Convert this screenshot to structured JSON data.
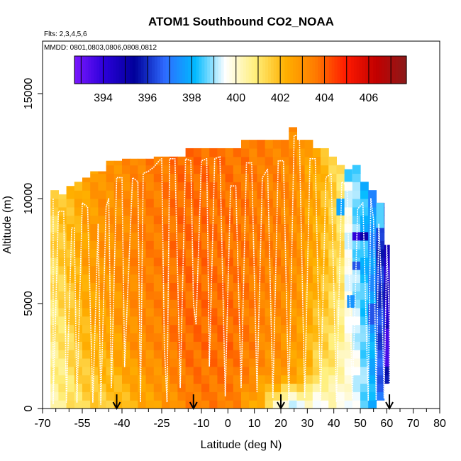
{
  "chart_data": {
    "type": "heatmap",
    "title": "ATOM1 Southbound CO2_NOAA",
    "flights_text": "Flts: 2,3,4,5,6",
    "dates_text": "MMDD: 0801,0803,0806,0808,0812",
    "xlabel": "Latitude (deg N)",
    "ylabel": "Altitude (m)",
    "xlim": [
      -70,
      80
    ],
    "ylim": [
      0,
      17500
    ],
    "x_ticks": [
      -70,
      -55,
      -40,
      -25,
      -10,
      0,
      10,
      20,
      30,
      40,
      50,
      60,
      70,
      80
    ],
    "x_minor_ticks": [
      -65,
      -60,
      -50,
      -45,
      -35,
      -30,
      -20,
      -15,
      -5,
      5,
      15,
      25,
      35,
      45,
      55,
      65,
      75
    ],
    "y_ticks": [
      0,
      5000,
      10000,
      15000
    ],
    "colorbar": {
      "min": 392.7,
      "max": 407.7,
      "ticks": [
        394,
        396,
        398,
        400,
        402,
        404,
        406
      ],
      "stops": [
        "#7b17ff",
        "#2a00d8",
        "#00009a",
        "#2e6bff",
        "#00baff",
        "#ffffff",
        "#ffef7a",
        "#ffb000",
        "#ff7a00",
        "#ff1a00",
        "#c20000",
        "#8c1a1a"
      ]
    },
    "arrow_latitudes": [
      -42,
      -13,
      20,
      61
    ],
    "columns": [
      {
        "lat0": -67,
        "lat1": -64,
        "top": 10400,
        "levels": [
          [
            0,
            400.5
          ],
          [
            4000,
            401.0
          ],
          [
            8000,
            401.5
          ]
        ]
      },
      {
        "lat0": -64,
        "lat1": -61,
        "top": 10200,
        "levels": [
          [
            0,
            400.7
          ],
          [
            4000,
            401.2
          ],
          [
            8000,
            401.8
          ]
        ]
      },
      {
        "lat0": -61,
        "lat1": -58,
        "top": 10600,
        "levels": [
          [
            0,
            401.0
          ],
          [
            3000,
            401.4
          ],
          [
            7000,
            402.0
          ]
        ]
      },
      {
        "lat0": -58,
        "lat1": -55,
        "top": 10800,
        "levels": [
          [
            0,
            401.2
          ],
          [
            3000,
            401.8
          ],
          [
            7000,
            402.3
          ]
        ]
      },
      {
        "lat0": -55,
        "lat1": -52,
        "top": 11000,
        "levels": [
          [
            0,
            401.4
          ],
          [
            3000,
            402.0
          ],
          [
            7000,
            402.6
          ]
        ]
      },
      {
        "lat0": -52,
        "lat1": -49,
        "top": 11300,
        "levels": [
          [
            0,
            401.5
          ],
          [
            3000,
            402.3
          ],
          [
            7000,
            402.8
          ]
        ]
      },
      {
        "lat0": -49,
        "lat1": -46,
        "top": 11300,
        "levels": [
          [
            0,
            401.6
          ],
          [
            3000,
            402.4
          ],
          [
            7000,
            403.0
          ]
        ]
      },
      {
        "lat0": -46,
        "lat1": -43,
        "top": 11800,
        "levels": [
          [
            0,
            401.6
          ],
          [
            3000,
            402.5
          ],
          [
            7000,
            403.0
          ]
        ]
      },
      {
        "lat0": -43,
        "lat1": -40,
        "top": 11800,
        "levels": [
          [
            0,
            401.8
          ],
          [
            3000,
            402.6
          ],
          [
            7000,
            403.1
          ]
        ]
      },
      {
        "lat0": -40,
        "lat1": -37,
        "top": 11900,
        "levels": [
          [
            0,
            402.0
          ],
          [
            3000,
            402.8
          ],
          [
            7000,
            403.2
          ]
        ]
      },
      {
        "lat0": -37,
        "lat1": -34,
        "top": 11900,
        "levels": [
          [
            0,
            402.2
          ],
          [
            3000,
            403.0
          ],
          [
            7000,
            403.3
          ]
        ]
      },
      {
        "lat0": -34,
        "lat1": -31,
        "top": 11900,
        "levels": [
          [
            0,
            402.4
          ],
          [
            3000,
            403.1
          ],
          [
            7000,
            403.4
          ]
        ]
      },
      {
        "lat0": -31,
        "lat1": -28,
        "top": 11900,
        "levels": [
          [
            0,
            402.5
          ],
          [
            3000,
            403.2
          ],
          [
            7000,
            403.5
          ]
        ]
      },
      {
        "lat0": -28,
        "lat1": -25,
        "top": 12000,
        "levels": [
          [
            0,
            402.6
          ],
          [
            3000,
            403.3
          ],
          [
            7000,
            403.5
          ]
        ]
      },
      {
        "lat0": -25,
        "lat1": -22,
        "top": 12000,
        "levels": [
          [
            0,
            402.8
          ],
          [
            3000,
            403.4
          ],
          [
            7000,
            403.6
          ]
        ]
      },
      {
        "lat0": -22,
        "lat1": -19,
        "top": 12000,
        "levels": [
          [
            0,
            403.0
          ],
          [
            3000,
            403.6
          ],
          [
            7000,
            403.7
          ]
        ]
      },
      {
        "lat0": -19,
        "lat1": -16,
        "top": 12000,
        "levels": [
          [
            0,
            403.2
          ],
          [
            3000,
            403.7
          ],
          [
            7000,
            403.8
          ]
        ]
      },
      {
        "lat0": -16,
        "lat1": -13,
        "top": 12400,
        "levels": [
          [
            0,
            403.4
          ],
          [
            3000,
            403.8
          ],
          [
            7000,
            403.8
          ]
        ]
      },
      {
        "lat0": -13,
        "lat1": -10,
        "top": 12400,
        "levels": [
          [
            0,
            403.5
          ],
          [
            3000,
            403.8
          ],
          [
            7000,
            403.8
          ]
        ]
      },
      {
        "lat0": -10,
        "lat1": -7,
        "top": 12400,
        "levels": [
          [
            0,
            403.5
          ],
          [
            3000,
            403.8
          ],
          [
            7000,
            403.8
          ]
        ]
      },
      {
        "lat0": -7,
        "lat1": -4,
        "top": 12400,
        "levels": [
          [
            0,
            403.5
          ],
          [
            3000,
            403.8
          ],
          [
            7000,
            403.7
          ]
        ]
      },
      {
        "lat0": -4,
        "lat1": -1,
        "top": 12400,
        "levels": [
          [
            0,
            403.5
          ],
          [
            3000,
            403.8
          ],
          [
            7000,
            403.7
          ]
        ]
      },
      {
        "lat0": -1,
        "lat1": 2,
        "top": 12400,
        "levels": [
          [
            0,
            403.4
          ],
          [
            3000,
            403.8
          ],
          [
            7000,
            403.7
          ]
        ]
      },
      {
        "lat0": 2,
        "lat1": 5,
        "top": 12400,
        "levels": [
          [
            0,
            403.3
          ],
          [
            3000,
            403.7
          ],
          [
            7000,
            403.6
          ]
        ]
      },
      {
        "lat0": 5,
        "lat1": 8,
        "top": 12800,
        "levels": [
          [
            0,
            402.8
          ],
          [
            2000,
            403.5
          ],
          [
            7000,
            403.6
          ]
        ]
      },
      {
        "lat0": 8,
        "lat1": 11,
        "top": 12800,
        "levels": [
          [
            0,
            402.4
          ],
          [
            2000,
            403.4
          ],
          [
            7000,
            403.5
          ]
        ]
      },
      {
        "lat0": 11,
        "lat1": 14,
        "top": 12800,
        "levels": [
          [
            0,
            402.0
          ],
          [
            2000,
            403.2
          ],
          [
            7000,
            403.5
          ]
        ]
      },
      {
        "lat0": 14,
        "lat1": 17,
        "top": 12800,
        "levels": [
          [
            0,
            401.2
          ],
          [
            2000,
            403.0
          ],
          [
            7000,
            403.4
          ]
        ]
      },
      {
        "lat0": 17,
        "lat1": 20,
        "top": 12800,
        "levels": [
          [
            0,
            399.8
          ],
          [
            1500,
            403.0
          ],
          [
            7000,
            403.4
          ]
        ]
      },
      {
        "lat0": 20,
        "lat1": 23,
        "top": 12800,
        "levels": [
          [
            0,
            399.0
          ],
          [
            1500,
            402.8
          ],
          [
            7000,
            403.3
          ]
        ]
      },
      {
        "lat0": 23,
        "lat1": 26,
        "top": 13400,
        "levels": [
          [
            0,
            398.8
          ],
          [
            1500,
            402.6
          ],
          [
            7000,
            403.2
          ]
        ]
      },
      {
        "lat0": 26,
        "lat1": 29,
        "top": 12800,
        "levels": [
          [
            0,
            399.2
          ],
          [
            1500,
            402.4
          ],
          [
            7000,
            403.0
          ]
        ]
      },
      {
        "lat0": 29,
        "lat1": 32,
        "top": 12800,
        "levels": [
          [
            0,
            399.5
          ],
          [
            1500,
            402.0
          ],
          [
            7000,
            402.6
          ]
        ]
      },
      {
        "lat0": 32,
        "lat1": 35,
        "top": 12400,
        "levels": [
          [
            0,
            399.4
          ],
          [
            2000,
            401.5
          ],
          [
            7000,
            402.4
          ]
        ]
      },
      {
        "lat0": 35,
        "lat1": 38,
        "top": 12400,
        "levels": [
          [
            0,
            399.6
          ],
          [
            2000,
            401.3
          ],
          [
            7000,
            402.0
          ]
        ]
      },
      {
        "lat0": 38,
        "lat1": 41,
        "top": 12000,
        "levels": [
          [
            0,
            400.0
          ],
          [
            2000,
            401.0
          ],
          [
            7000,
            401.6
          ]
        ]
      },
      {
        "lat0": 41,
        "lat1": 44,
        "top": 11600,
        "levels": [
          [
            0,
            399.8
          ],
          [
            2000,
            400.4
          ],
          [
            7000,
            401.2
          ]
        ]
      },
      {
        "lat0": 44,
        "lat1": 47,
        "top": 11400,
        "levels": [
          [
            0,
            399.6
          ],
          [
            2000,
            400.0
          ],
          [
            7000,
            399.5
          ]
        ]
      },
      {
        "lat0": 47,
        "lat1": 50,
        "top": 11600,
        "levels": [
          [
            0,
            399.2
          ],
          [
            2000,
            399.5
          ],
          [
            7000,
            398.8
          ]
        ]
      },
      {
        "lat0": 50,
        "lat1": 53,
        "top": 10800,
        "levels": [
          [
            0,
            398.8
          ],
          [
            2000,
            398.8
          ],
          [
            7000,
            398.2
          ]
        ]
      },
      {
        "lat0": 53,
        "lat1": 56,
        "top": 10400,
        "levels": [
          [
            300,
            398.0
          ],
          [
            2000,
            398.0
          ],
          [
            7000,
            397.5
          ]
        ]
      },
      {
        "lat0": 56,
        "lat1": 59,
        "top": 9800,
        "levels": [
          [
            500,
            397.0
          ],
          [
            2000,
            396.5
          ],
          [
            7000,
            396.0
          ]
        ]
      },
      {
        "lat0": 59,
        "lat1": 61,
        "top": 7800,
        "levels": [
          [
            1200,
            395.5
          ],
          [
            4000,
            394.5
          ]
        ]
      }
    ],
    "patches": [
      {
        "lat0": 47,
        "lat1": 50,
        "alt0": 8000,
        "alt1": 8400,
        "value": 394.0
      },
      {
        "lat0": 50,
        "lat1": 53,
        "alt0": 8000,
        "alt1": 8400,
        "value": 395.0
      },
      {
        "lat0": 45,
        "lat1": 48,
        "alt0": 4800,
        "alt1": 5400,
        "value": 397.5
      },
      {
        "lat0": 41,
        "lat1": 44,
        "alt0": 9200,
        "alt1": 10000,
        "value": 397.8
      },
      {
        "lat0": 44,
        "lat1": 47,
        "alt0": 10800,
        "alt1": 11400,
        "value": 398.4
      },
      {
        "lat0": 47,
        "lat1": 50,
        "alt0": 6600,
        "alt1": 7000,
        "value": 396.5
      },
      {
        "lat0": 59,
        "lat1": 61,
        "alt0": 2000,
        "alt1": 3800,
        "value": 393.6
      },
      {
        "lat0": 53,
        "lat1": 56,
        "alt0": 4000,
        "alt1": 5000,
        "value": 396.5
      },
      {
        "lat0": 56,
        "lat1": 59,
        "alt0": 8600,
        "alt1": 9800,
        "value": 398.6
      }
    ],
    "flight_path": [
      [
        -66,
        10000
      ],
      [
        -66,
        200
      ],
      [
        -64,
        9400
      ],
      [
        -62,
        9400
      ],
      [
        -61,
        300
      ],
      [
        -59,
        8600
      ],
      [
        -58,
        8600
      ],
      [
        -57,
        300
      ],
      [
        -55,
        9800
      ],
      [
        -53,
        9600
      ],
      [
        -51,
        300
      ],
      [
        -49,
        8800
      ],
      [
        -48,
        200
      ],
      [
        -46,
        9600
      ],
      [
        -45,
        10000
      ],
      [
        -44,
        1000
      ],
      [
        -42,
        11000
      ],
      [
        -40,
        11000
      ],
      [
        -39,
        2000
      ],
      [
        -36,
        11000
      ],
      [
        -34,
        10800
      ],
      [
        -33,
        300
      ],
      [
        -32,
        11200
      ],
      [
        -30,
        11300
      ],
      [
        -28,
        11500
      ],
      [
        -26,
        11800
      ],
      [
        -25,
        11900
      ],
      [
        -24,
        3000
      ],
      [
        -23,
        300
      ],
      [
        -22,
        11900
      ],
      [
        -20,
        11900
      ],
      [
        -18,
        1000
      ],
      [
        -16,
        11900
      ],
      [
        -14,
        11800
      ],
      [
        -13,
        5000
      ],
      [
        -12,
        4000
      ],
      [
        -10,
        11800
      ],
      [
        -8,
        11900
      ],
      [
        -7,
        2000
      ],
      [
        -5,
        11900
      ],
      [
        -3,
        12000
      ],
      [
        -1,
        600
      ],
      [
        1,
        10600
      ],
      [
        3,
        10600
      ],
      [
        5,
        1000
      ],
      [
        7,
        11700
      ],
      [
        9,
        11700
      ],
      [
        11,
        800
      ],
      [
        13,
        11000
      ],
      [
        15,
        11400
      ],
      [
        17,
        500
      ],
      [
        19,
        11800
      ],
      [
        21,
        11800
      ],
      [
        23,
        300
      ],
      [
        25,
        13000
      ],
      [
        27,
        13000
      ],
      [
        29,
        500
      ],
      [
        31,
        11900
      ],
      [
        33,
        11900
      ],
      [
        35,
        400
      ],
      [
        37,
        11000
      ],
      [
        39,
        11200
      ],
      [
        41,
        300
      ],
      [
        43,
        10800
      ],
      [
        45,
        10600
      ],
      [
        47,
        500
      ],
      [
        49,
        9500
      ],
      [
        51,
        9800
      ],
      [
        53,
        400
      ],
      [
        54,
        10000
      ],
      [
        55,
        9000
      ],
      [
        56,
        400
      ],
      [
        57,
        8800
      ],
      [
        58,
        6000
      ],
      [
        59,
        500
      ],
      [
        60,
        7800
      ],
      [
        61,
        4000
      ],
      [
        61,
        1000
      ]
    ]
  }
}
